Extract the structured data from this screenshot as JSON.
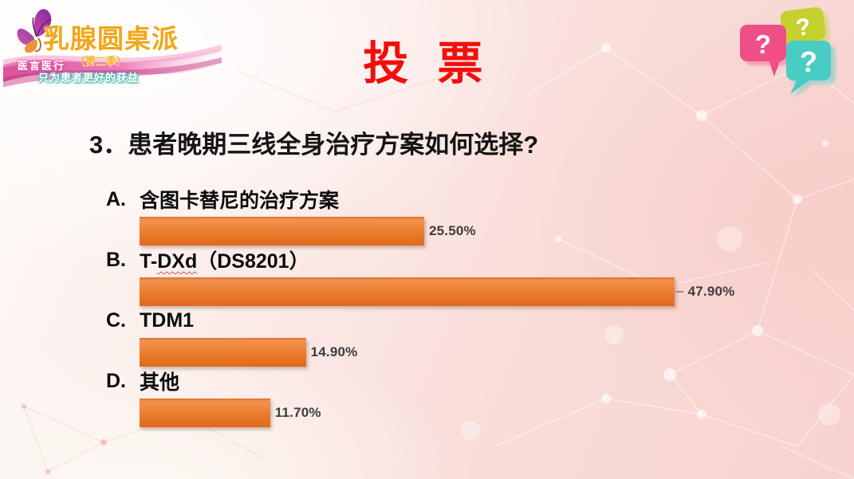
{
  "slide": {
    "title": "投 票",
    "title_color": "#F30D0D"
  },
  "logo": {
    "title": "乳腺圆桌派",
    "season": "（第二季）",
    "tagline_line1": "医言医行",
    "tagline_line2": "只为患者更好的获益",
    "butterfly_icon": "butterfly",
    "brand_gold": "#F2A517",
    "ribbon_pink": "#E35DA4"
  },
  "bubbles": {
    "question_mark": "?",
    "pink_color": "#EF4E86",
    "green_color": "#C5D12F",
    "teal_color": "#49CCC4"
  },
  "poll": {
    "question": "3．患者晚期三线全身治疗方案如何选择?",
    "bar_color": "#E97B2A",
    "options": [
      {
        "letter": "A.",
        "label_parts": [
          {
            "t": "含图卡替尼的治疗方案"
          }
        ],
        "percent": 25.5,
        "value_label": "25.50%"
      },
      {
        "letter": "B.",
        "label_parts": [
          {
            "t": "T-"
          },
          {
            "t": "DXd",
            "squiggle": true
          },
          {
            "t": "（DS8201）"
          }
        ],
        "percent": 47.9,
        "value_label": "47.90%",
        "leader": true
      },
      {
        "letter": "C.",
        "label_parts": [
          {
            "t": "TDM1"
          }
        ],
        "percent": 14.9,
        "value_label": "14.90%"
      },
      {
        "letter": "D.",
        "label_parts": [
          {
            "t": "其他"
          }
        ],
        "percent": 11.7,
        "value_label": "11.70%"
      }
    ]
  },
  "chart_data": {
    "type": "bar",
    "orientation": "horizontal",
    "title": "投 票",
    "subtitle": "3．患者晚期三线全身治疗方案如何选择?",
    "categories": [
      "A. 含图卡替尼的治疗方案",
      "B. T-DXd（DS8201）",
      "C. TDM1",
      "D. 其他"
    ],
    "values": [
      25.5,
      47.9,
      14.9,
      11.7
    ],
    "value_labels": [
      "25.50%",
      "47.90%",
      "14.90%",
      "11.70%"
    ],
    "unit": "%",
    "xlim": [
      0,
      50
    ],
    "grid": false,
    "legend": false,
    "bar_color": "#E97B2A",
    "data_label_position": "outside-end"
  }
}
